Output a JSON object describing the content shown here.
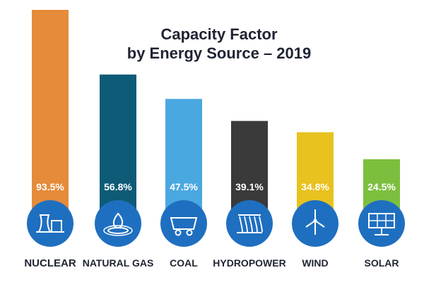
{
  "chart_data": {
    "type": "bar",
    "title": "Capacity Factor",
    "subtitle": "by Energy Source – 2019",
    "categories": [
      "NUCLEAR",
      "NATURAL GAS",
      "COAL",
      "HYDROPOWER",
      "WIND",
      "SOLAR"
    ],
    "values": [
      93.5,
      56.8,
      47.5,
      39.1,
      34.8,
      24.5
    ],
    "value_labels": [
      "93.5%",
      "56.8%",
      "47.5%",
      "39.1%",
      "34.8%",
      "24.5%"
    ],
    "colors": [
      "#e58b3a",
      "#0e5b77",
      "#4aa8e0",
      "#3a3a3a",
      "#e8c21e",
      "#7cbf3f"
    ],
    "icons": [
      "cooling-tower-icon",
      "gas-flame-icon",
      "coal-cart-icon",
      "dam-icon",
      "wind-turbine-icon",
      "solar-panel-icon"
    ],
    "icon_circle_color": "#1f6fc0",
    "ylim": [
      0,
      100
    ],
    "xlabel": "",
    "ylabel": "",
    "legend": "none",
    "grid": false
  }
}
